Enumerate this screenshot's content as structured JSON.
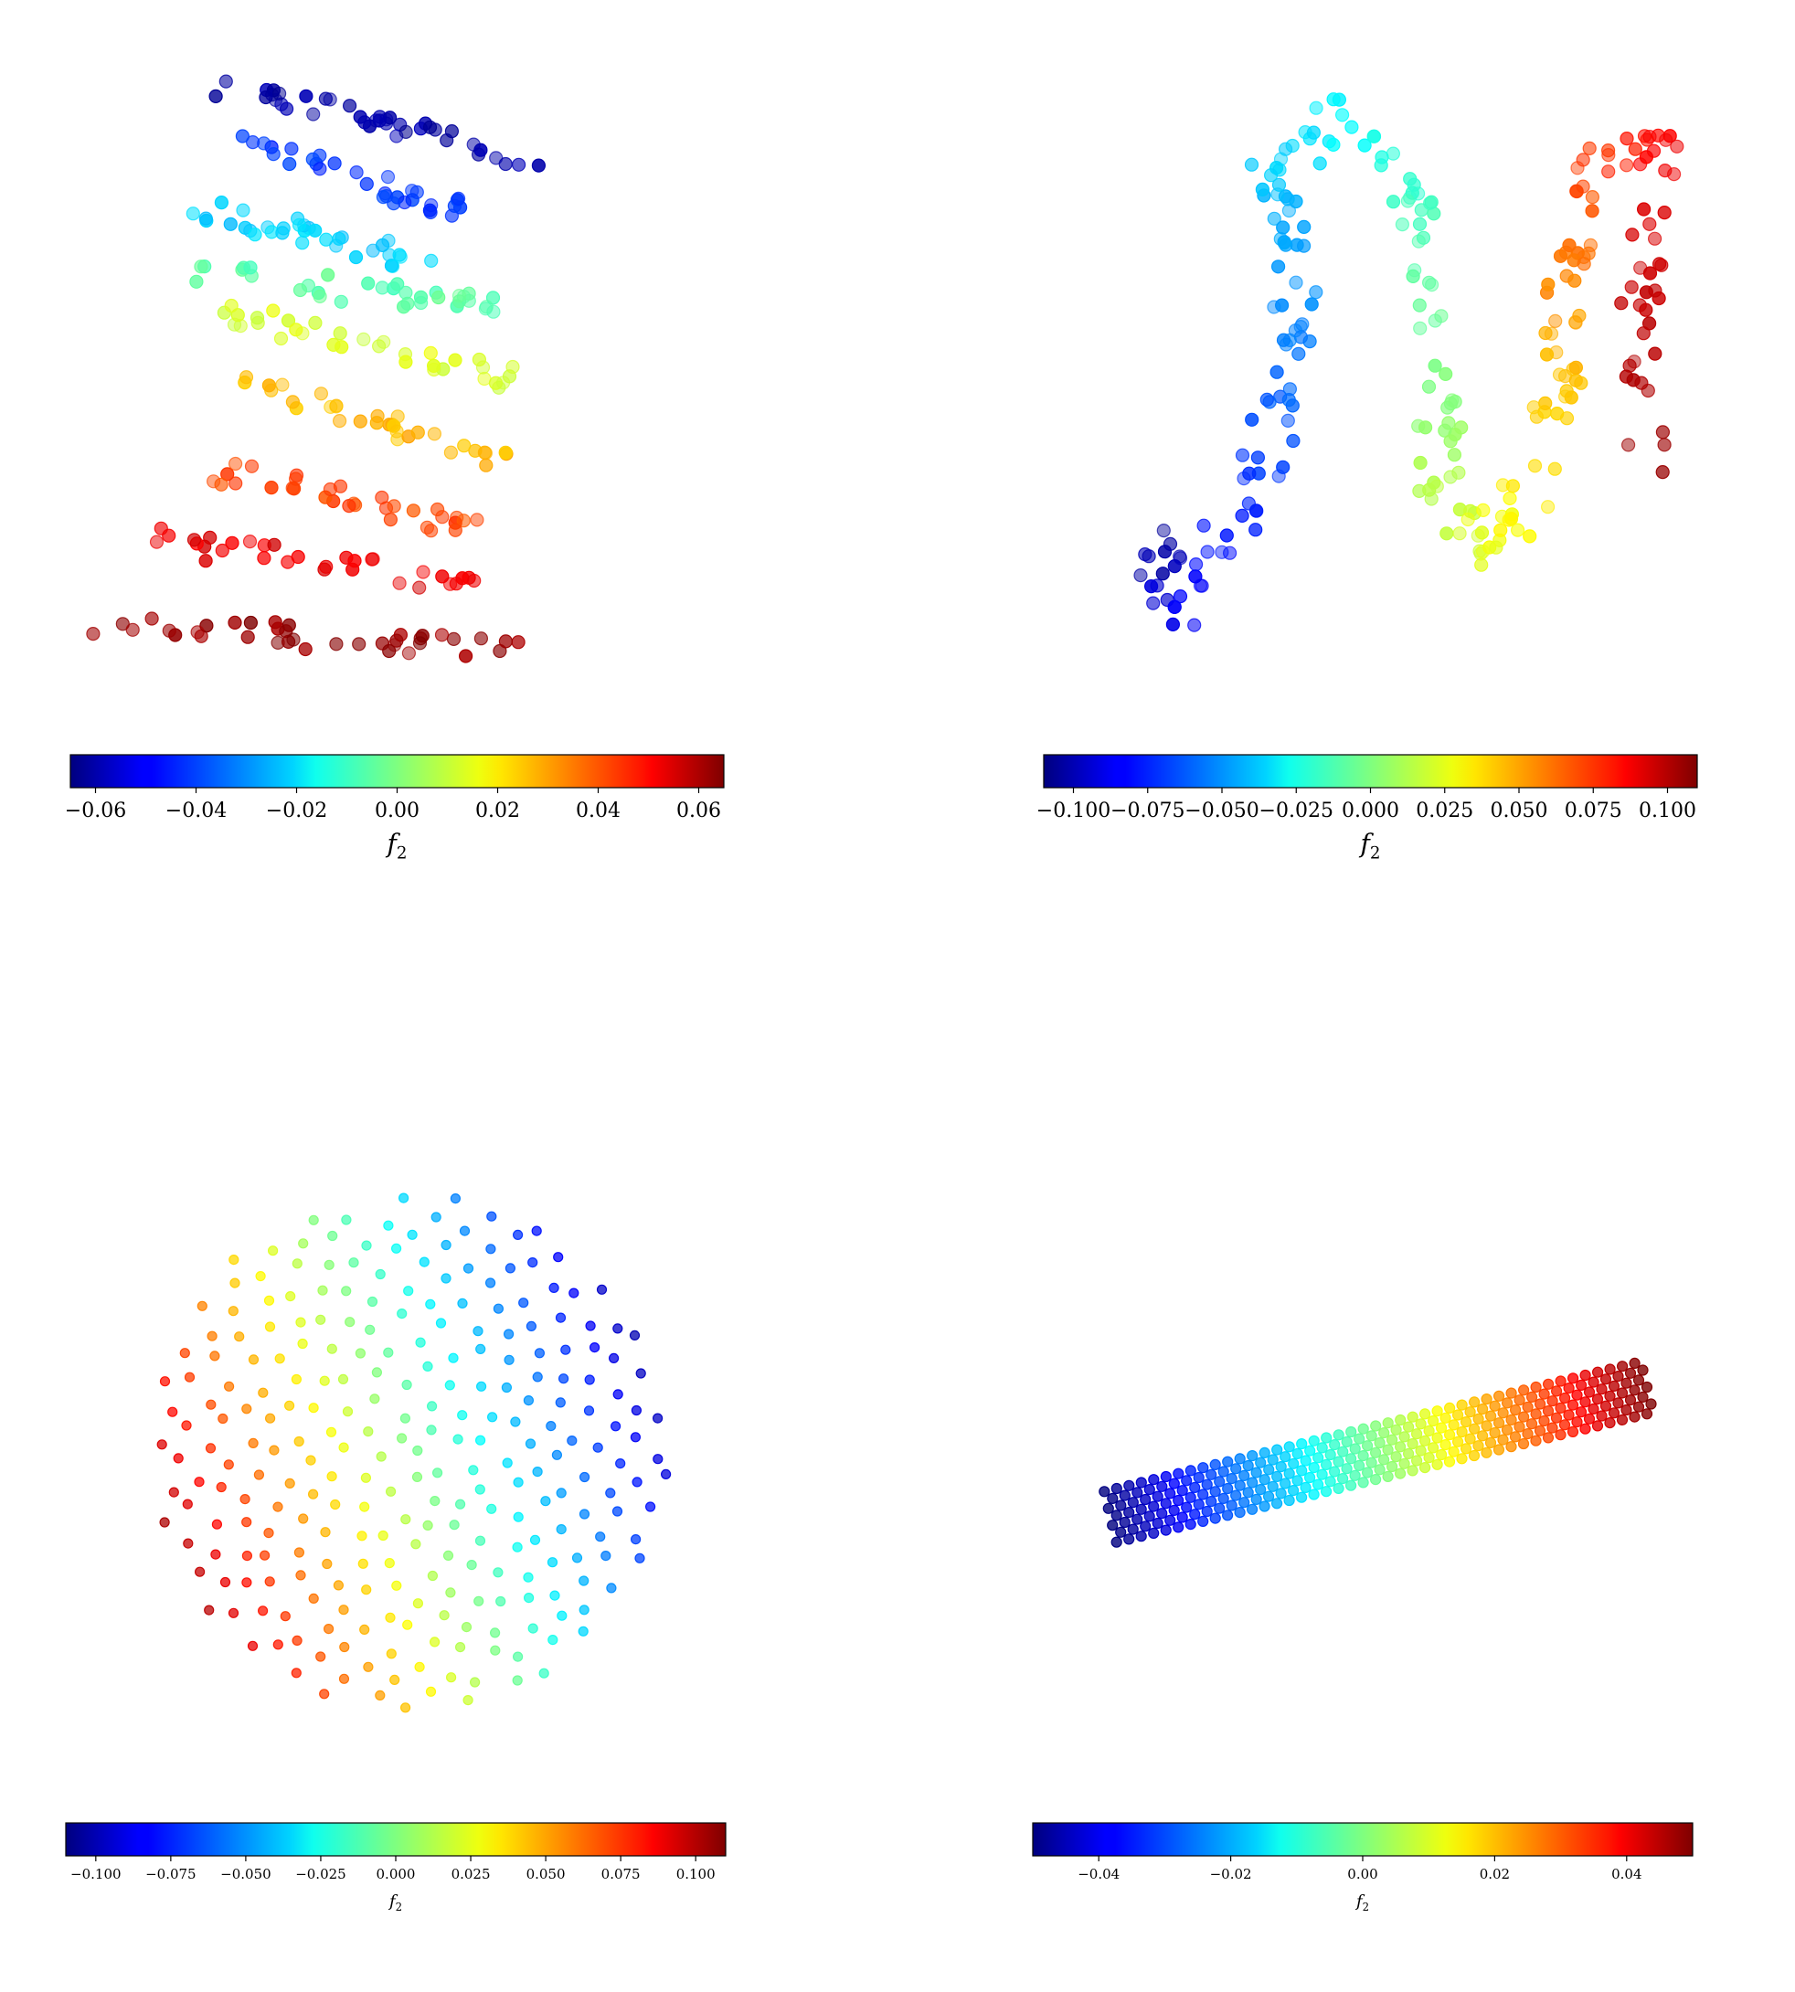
{
  "chart_data": [
    {
      "type": "scatter",
      "title": "",
      "colormap": "jet",
      "colorbar": {
        "label": "f2",
        "range": [
          -0.065,
          0.065
        ],
        "ticks": [
          -0.06,
          -0.04,
          -0.02,
          0.0,
          0.02,
          0.04,
          0.06
        ],
        "tick_labels": [
          "−0.06",
          "−0.04",
          "−0.02",
          "0.00",
          "0.02",
          "0.04",
          "0.06"
        ]
      },
      "shape": "stacked-bands",
      "bands": [
        {
          "value": -0.06,
          "cx": -0.45,
          "y": 0.92,
          "w": 0.62,
          "slope": 0.14,
          "n": 40
        },
        {
          "value": -0.042,
          "cx": -0.5,
          "y": 0.72,
          "w": 0.36,
          "slope": 0.1,
          "n": 32
        },
        {
          "value": -0.022,
          "cx": -0.62,
          "y": 0.52,
          "w": 0.44,
          "slope": 0.1,
          "n": 34
        },
        {
          "value": -0.005,
          "cx": -0.55,
          "y": 0.34,
          "w": 0.52,
          "slope": 0.06,
          "n": 34
        },
        {
          "value": 0.012,
          "cx": -0.42,
          "y": 0.14,
          "w": 0.52,
          "slope": 0.12,
          "n": 34
        },
        {
          "value": 0.025,
          "cx": -0.45,
          "y": -0.1,
          "w": 0.48,
          "slope": 0.14,
          "n": 32
        },
        {
          "value": 0.04,
          "cx": -0.52,
          "y": -0.38,
          "w": 0.46,
          "slope": 0.1,
          "n": 32
        },
        {
          "value": 0.052,
          "cx": -0.62,
          "y": -0.6,
          "w": 0.55,
          "slope": 0.08,
          "n": 32
        },
        {
          "value": 0.062,
          "cx": -0.65,
          "y": -0.85,
          "w": 0.72,
          "slope": 0.04,
          "n": 38
        }
      ]
    },
    {
      "type": "scatter",
      "title": "",
      "colormap": "jet",
      "colorbar": {
        "label": "f2",
        "range": [
          -0.11,
          0.11
        ],
        "ticks": [
          -0.1,
          -0.075,
          -0.05,
          -0.025,
          0.0,
          0.025,
          0.05,
          0.075,
          0.1
        ],
        "tick_labels": [
          "−0.100",
          "−0.075",
          "−0.050",
          "−0.025",
          "0.000",
          "0.025",
          "0.050",
          "0.075",
          "0.100"
        ]
      },
      "shape": "folded-ribbon",
      "path": [
        {
          "x": -0.95,
          "y": -0.55,
          "v": -0.105
        },
        {
          "x": -0.85,
          "y": -0.8,
          "v": -0.085
        },
        {
          "x": -0.6,
          "y": -0.4,
          "v": -0.075
        },
        {
          "x": -0.45,
          "y": 0.0,
          "v": -0.06
        },
        {
          "x": -0.42,
          "y": 0.4,
          "v": -0.05
        },
        {
          "x": -0.55,
          "y": 0.7,
          "v": -0.04
        },
        {
          "x": -0.3,
          "y": 0.95,
          "v": -0.03
        },
        {
          "x": 0.0,
          "y": 0.7,
          "v": -0.015
        },
        {
          "x": 0.1,
          "y": 0.2,
          "v": -0.005
        },
        {
          "x": 0.1,
          "y": -0.3,
          "v": 0.01
        },
        {
          "x": 0.2,
          "y": -0.6,
          "v": 0.02
        },
        {
          "x": 0.4,
          "y": -0.4,
          "v": 0.03
        },
        {
          "x": 0.55,
          "y": 0.0,
          "v": 0.04
        },
        {
          "x": 0.55,
          "y": 0.4,
          "v": 0.055
        },
        {
          "x": 0.65,
          "y": 0.75,
          "v": 0.07
        },
        {
          "x": 0.95,
          "y": 0.8,
          "v": 0.085
        },
        {
          "x": 0.82,
          "y": 0.3,
          "v": 0.095
        },
        {
          "x": 0.85,
          "y": -0.3,
          "v": 0.105
        }
      ],
      "points_per_segment": 16
    },
    {
      "type": "scatter",
      "title": "",
      "colormap": "jet",
      "colorbar": {
        "label": "f2",
        "range": [
          -0.11,
          0.11
        ],
        "ticks": [
          -0.1,
          -0.075,
          -0.05,
          -0.025,
          0.0,
          0.025,
          0.05,
          0.075,
          0.1
        ],
        "tick_labels": [
          "−0.100",
          "−0.075",
          "−0.050",
          "−0.025",
          "0.000",
          "0.025",
          "0.050",
          "0.075",
          "0.100"
        ]
      },
      "shape": "disc",
      "n_points": 270,
      "value_range": [
        -0.105,
        0.105
      ]
    },
    {
      "type": "scatter",
      "title": "",
      "colormap": "jet",
      "colorbar": {
        "label": "f2",
        "range": [
          -0.05,
          0.05
        ],
        "ticks": [
          -0.04,
          -0.02,
          0.0,
          0.02,
          0.04
        ],
        "tick_labels": [
          "−0.04",
          "−0.02",
          "0.00",
          "0.02",
          "0.04"
        ]
      },
      "shape": "lattice-strip",
      "rows": 7,
      "cols": 44,
      "value_range": [
        -0.05,
        0.05
      ]
    }
  ]
}
